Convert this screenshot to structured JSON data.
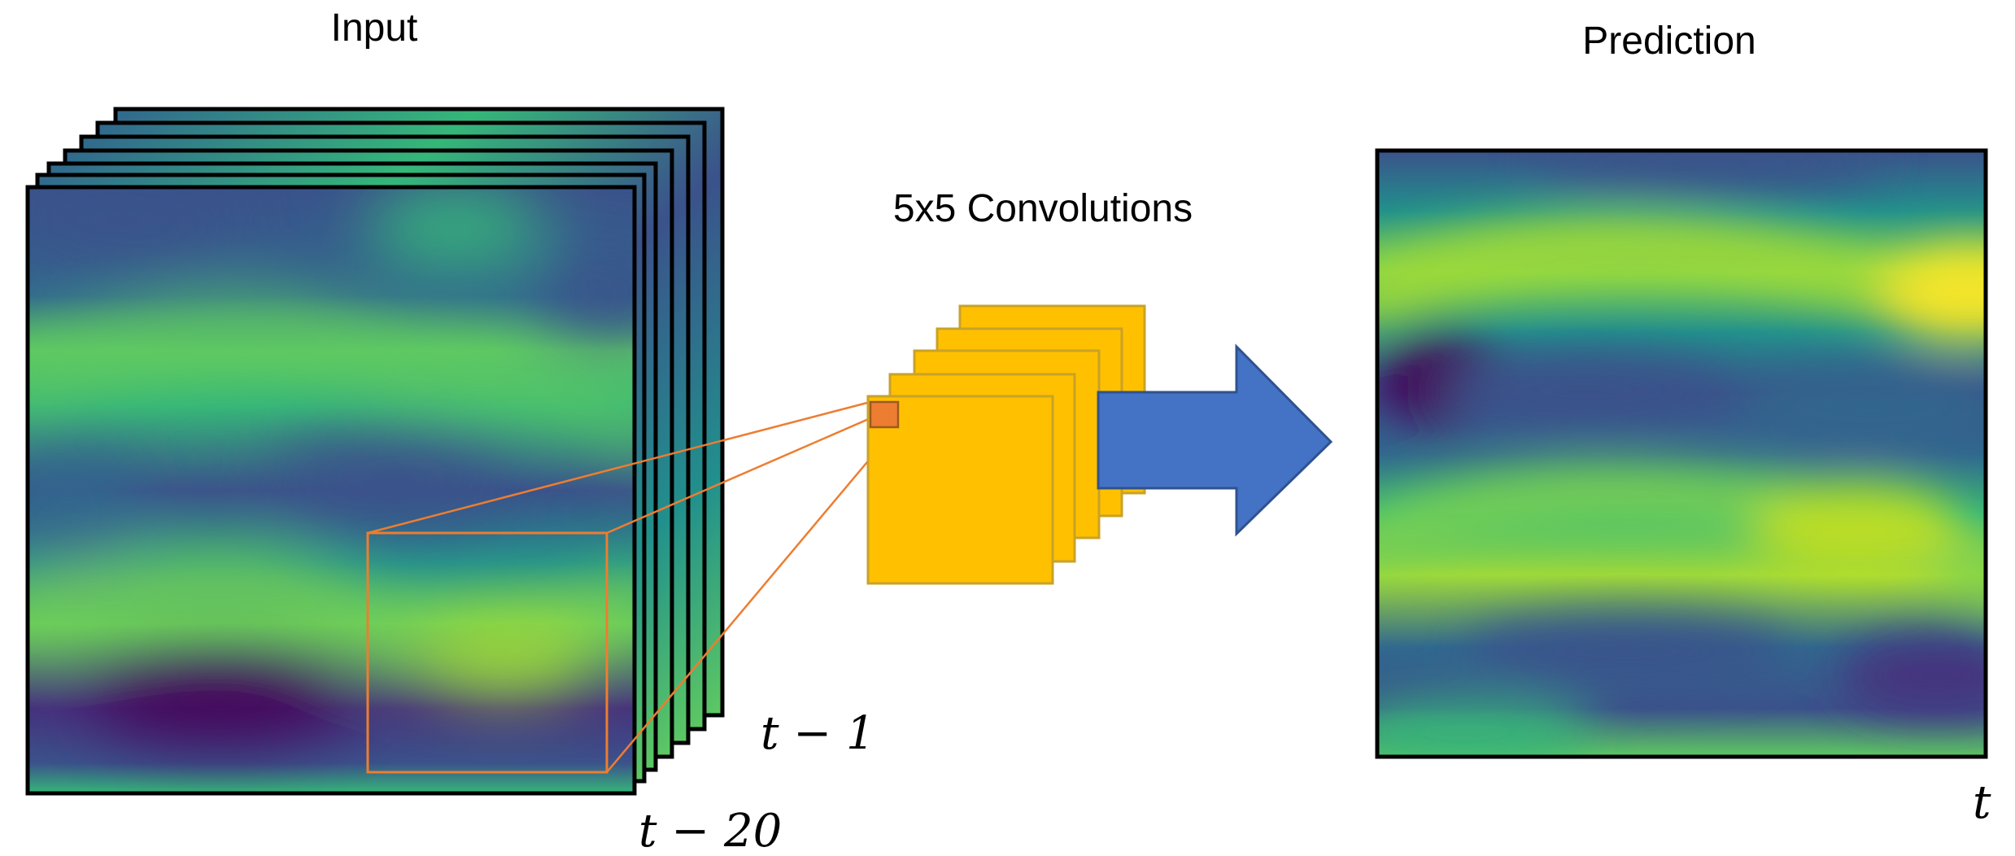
{
  "labels": {
    "input": "Input",
    "prediction": "Prediction",
    "convolutions": "5x5 Convolutions",
    "t_minus_1": "t − 1",
    "t_minus_20": "t − 20",
    "t": "t"
  },
  "colors": {
    "viridis_dark": "#440154",
    "viridis_blue": "#3b528b",
    "viridis_teal": "#21908c",
    "viridis_green": "#5ec962",
    "viridis_yellow": "#fde725",
    "kernel_fill": "#FFC000",
    "kernel_stroke": "#C9A227",
    "highlight_orange": "#ED7D31",
    "arrow_blue": "#4472C4",
    "frame_stroke": "#000000"
  },
  "diagram": {
    "input_stack_frames": 7,
    "kernel_stack_layers": 5
  }
}
